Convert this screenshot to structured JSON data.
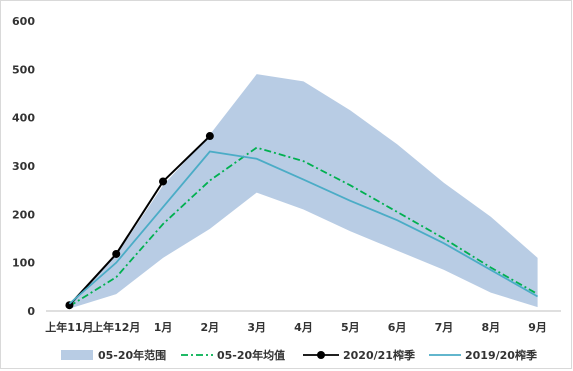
{
  "chart_data": {
    "type": "line",
    "title": "",
    "xlabel": "",
    "ylabel": "",
    "categories": [
      "上年11月",
      "上年12月",
      "1月",
      "2月",
      "3月",
      "4月",
      "5月",
      "6月",
      "7月",
      "8月",
      "9月"
    ],
    "ylim": [
      0,
      600
    ],
    "yticks": [
      0,
      100,
      200,
      300,
      400,
      500,
      600
    ],
    "grid": false,
    "legend_position": "bottom",
    "range_band": {
      "name": "05-20年范围",
      "color": "#b8cce4",
      "low": [
        5,
        35,
        110,
        170,
        245,
        210,
        165,
        125,
        85,
        38,
        8
      ],
      "high": [
        15,
        115,
        260,
        365,
        490,
        475,
        415,
        345,
        265,
        195,
        110
      ]
    },
    "series": [
      {
        "name": "05-20年均值",
        "color": "#00b050",
        "style": "dashdot",
        "values": [
          10,
          70,
          180,
          270,
          338,
          310,
          260,
          205,
          150,
          90,
          35
        ]
      },
      {
        "name": "2020/21榨季",
        "color": "#000000",
        "style": "solid-marker",
        "values": [
          12,
          118,
          268,
          362,
          null,
          null,
          null,
          null,
          null,
          null,
          null
        ]
      },
      {
        "name": "2019/20榨季",
        "color": "#4bacc6",
        "style": "solid",
        "values": [
          15,
          100,
          215,
          330,
          315,
          272,
          228,
          188,
          140,
          85,
          30
        ]
      }
    ]
  }
}
